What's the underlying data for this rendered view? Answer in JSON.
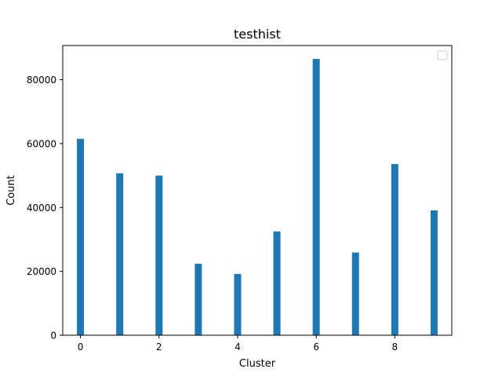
{
  "chart_data": {
    "type": "bar",
    "title": "testhist",
    "xlabel": "Cluster",
    "ylabel": "Count",
    "categories": [
      0,
      1,
      2,
      3,
      4,
      5,
      6,
      7,
      8,
      9
    ],
    "values": [
      61500,
      50700,
      50000,
      22400,
      19200,
      32500,
      86500,
      25900,
      53600,
      39100
    ],
    "xlim": [
      -0.45,
      9.45
    ],
    "ylim": [
      0,
      90700
    ],
    "xticks": [
      0,
      2,
      4,
      6,
      8
    ],
    "yticks": [
      0,
      20000,
      40000,
      60000,
      80000
    ],
    "bar_color": "#1f77b4",
    "grid": false,
    "legend": {
      "placement": "top-right",
      "entries": []
    }
  }
}
